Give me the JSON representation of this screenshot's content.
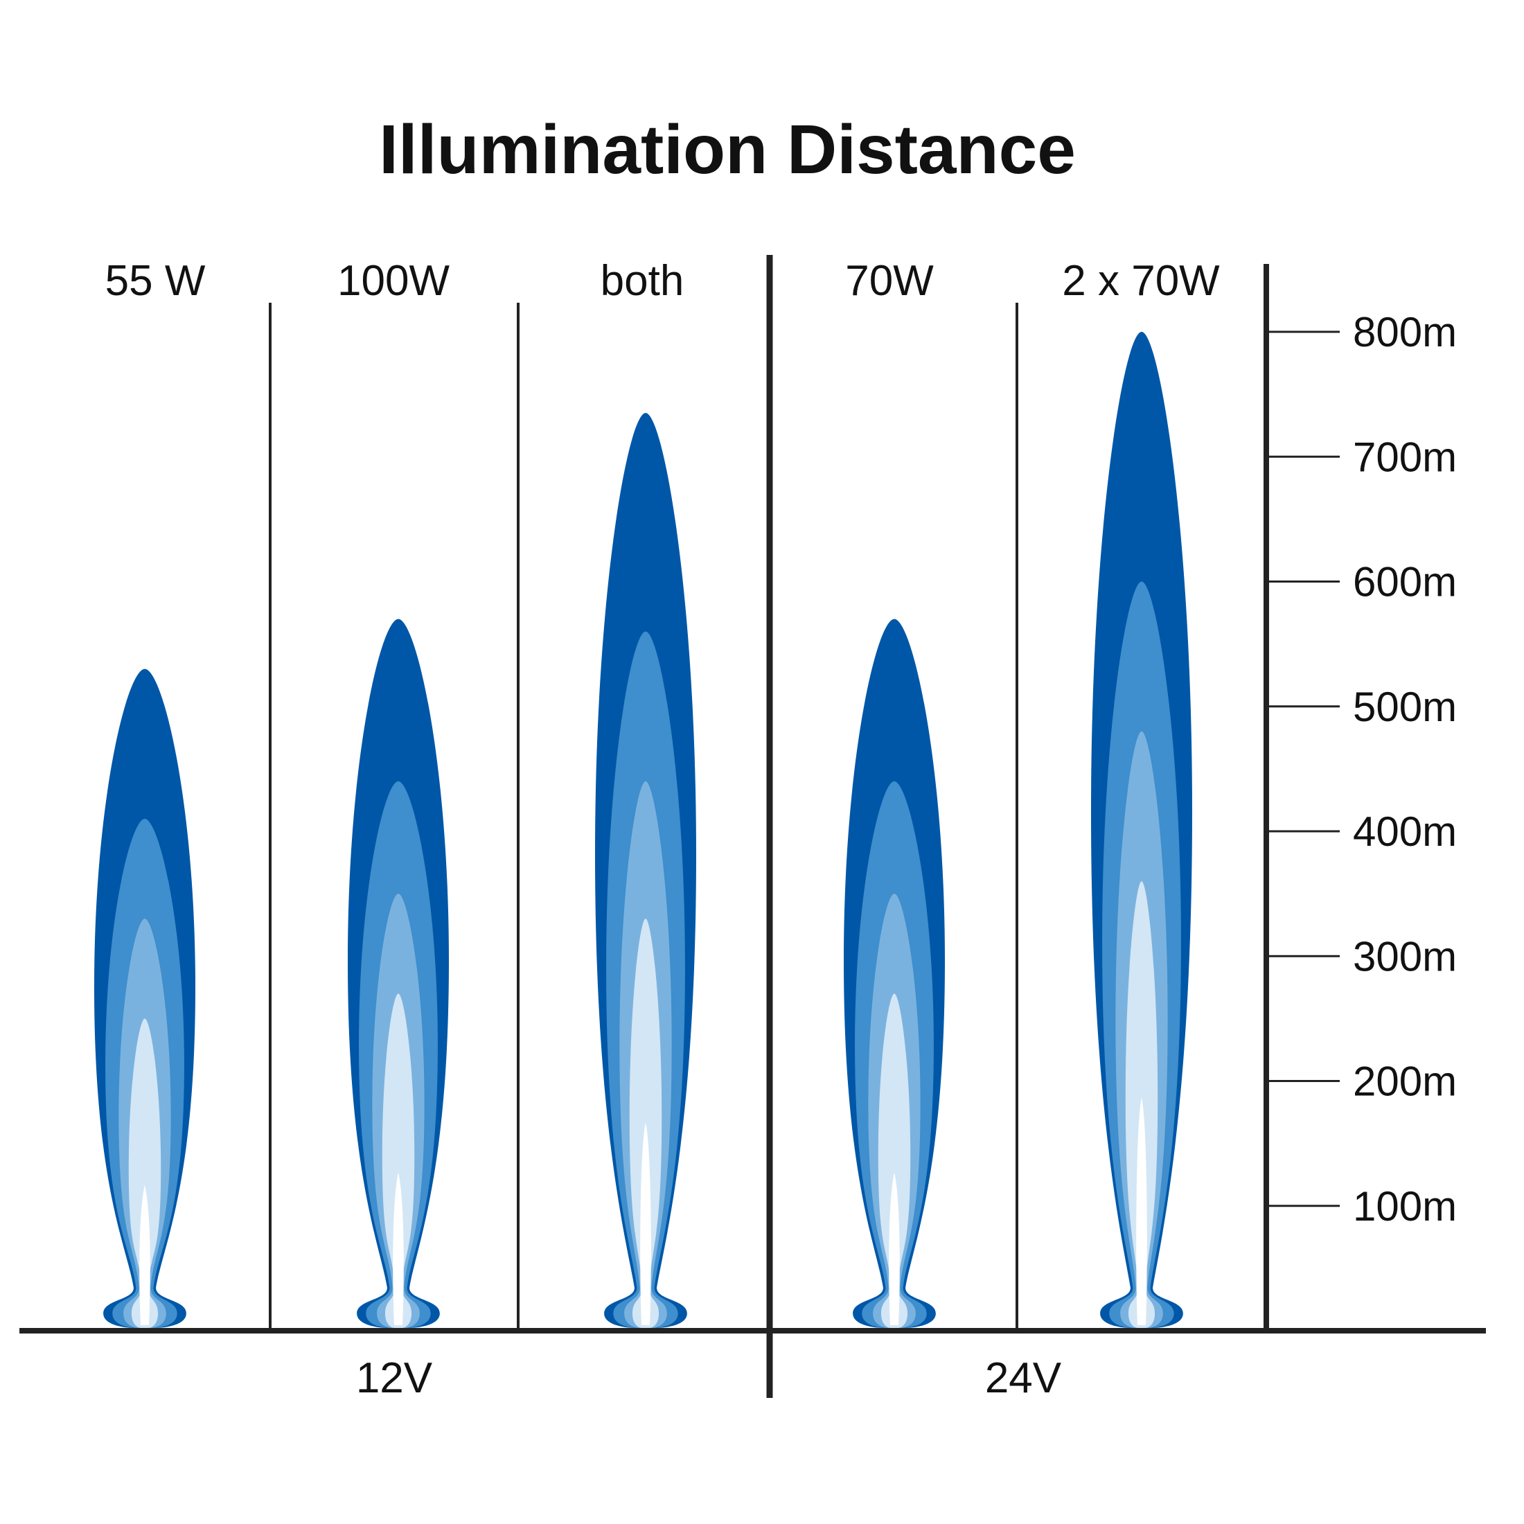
{
  "chart_data": {
    "type": "bar",
    "title": "Illumination Distance",
    "categories": [
      "55 W",
      "100W",
      "both",
      "70W",
      "2 x 70W"
    ],
    "groups": [
      {
        "label": "12V",
        "categories": [
          "55 W",
          "100W",
          "both"
        ]
      },
      {
        "label": "24V",
        "categories": [
          "70W",
          "2 x 70W"
        ]
      }
    ],
    "series": [
      {
        "values": [
          530,
          570,
          735,
          570,
          800
        ]
      }
    ],
    "intensity_zones": [
      [
        150,
        250,
        330,
        410
      ],
      [
        160,
        270,
        350,
        440
      ],
      [
        200,
        330,
        440,
        560
      ],
      [
        160,
        270,
        350,
        440
      ],
      [
        220,
        360,
        480,
        600
      ]
    ],
    "yticks": [
      "100m",
      "200m",
      "300m",
      "400m",
      "500m",
      "600m",
      "700m",
      "800m"
    ],
    "ylim": [
      0,
      800
    ],
    "grid": false,
    "legend": "none",
    "colors": {
      "outer": "#0057a7",
      "zone2": "#3f8ecd",
      "zone3": "#7ab2df",
      "zone4": "#d3e6f5",
      "core": "#ffffff",
      "axis": "#222222"
    }
  }
}
